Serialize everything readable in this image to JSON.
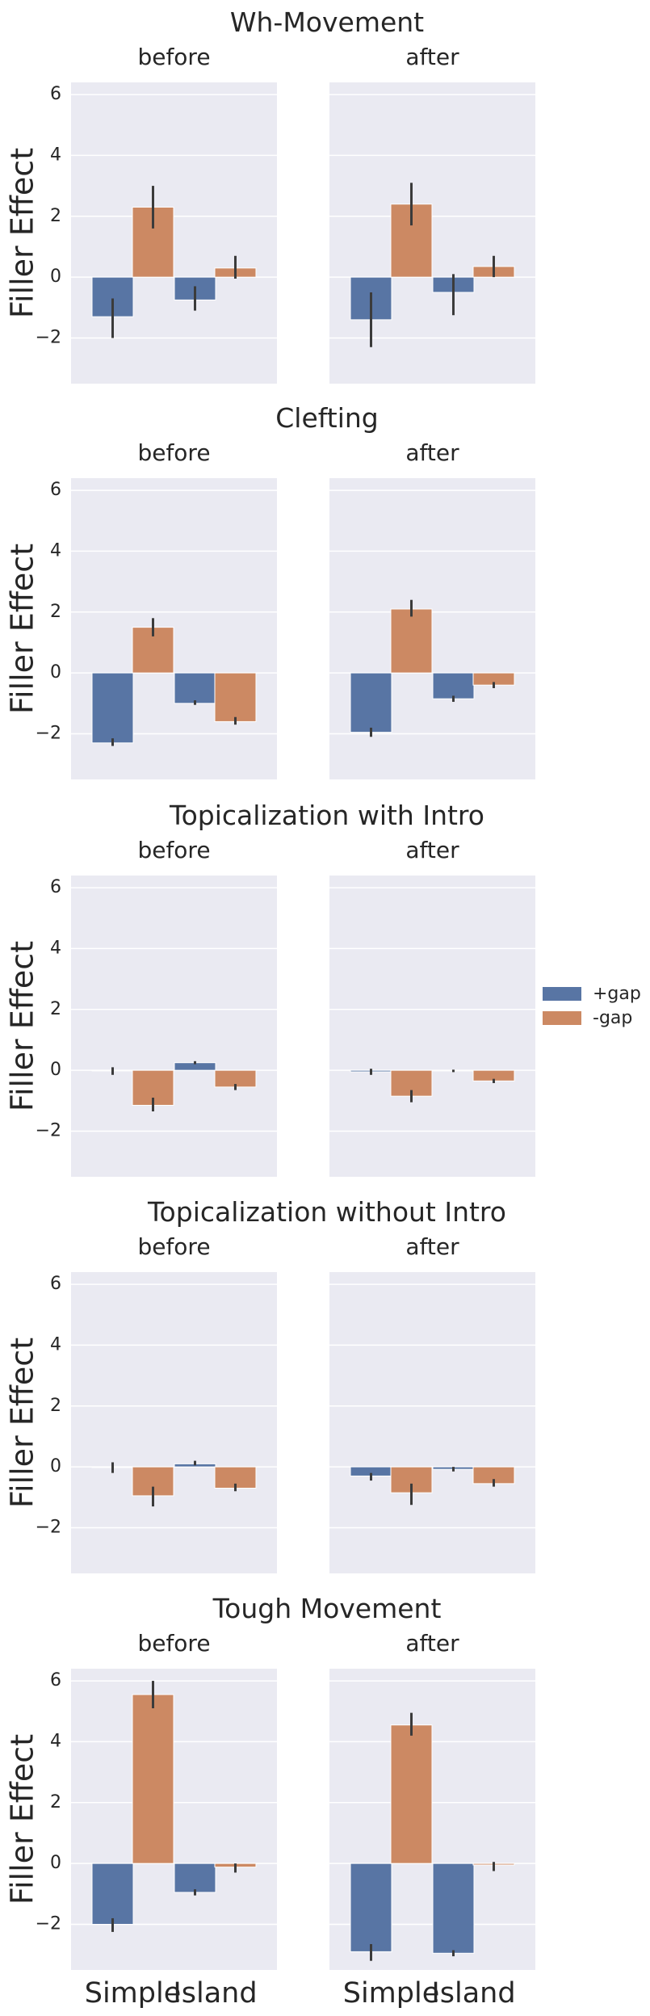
{
  "chart_data": {
    "type": "bar",
    "ylabel": "Filler Effect",
    "ylim": [
      -3.5,
      6.4
    ],
    "yticks": [
      -2,
      0,
      2,
      4,
      6
    ],
    "categories": [
      "Simple",
      "Island"
    ],
    "columns": [
      "before",
      "after"
    ],
    "grid": true,
    "legend_position": "right",
    "series_names": [
      "+gap",
      "-gap"
    ],
    "colors": {
      "+gap": "#5875a4",
      "-gap": "#cc8963",
      "background": "#eaeaf2",
      "grid": "#ffffff"
    },
    "rows": [
      {
        "title": "Wh-Movement",
        "panels": [
          {
            "column": "before",
            "bars": [
              {
                "category": "Simple",
                "series": "+gap",
                "value": -1.3,
                "ci": [
                  -2.0,
                  -0.7
                ]
              },
              {
                "category": "Simple",
                "series": "-gap",
                "value": 2.3,
                "ci": [
                  1.6,
                  3.0
                ]
              },
              {
                "category": "Island",
                "series": "+gap",
                "value": -0.75,
                "ci": [
                  -1.1,
                  -0.3
                ]
              },
              {
                "category": "Island",
                "series": "-gap",
                "value": 0.3,
                "ci": [
                  -0.05,
                  0.7
                ]
              }
            ]
          },
          {
            "column": "after",
            "bars": [
              {
                "category": "Simple",
                "series": "+gap",
                "value": -1.4,
                "ci": [
                  -2.3,
                  -0.5
                ]
              },
              {
                "category": "Simple",
                "series": "-gap",
                "value": 2.4,
                "ci": [
                  1.7,
                  3.1
                ]
              },
              {
                "category": "Island",
                "series": "+gap",
                "value": -0.5,
                "ci": [
                  -1.25,
                  0.1
                ]
              },
              {
                "category": "Island",
                "series": "-gap",
                "value": 0.35,
                "ci": [
                  0.0,
                  0.7
                ]
              }
            ]
          }
        ]
      },
      {
        "title": "Clefting",
        "panels": [
          {
            "column": "before",
            "bars": [
              {
                "category": "Simple",
                "series": "+gap",
                "value": -2.3,
                "ci": [
                  -2.4,
                  -2.15
                ]
              },
              {
                "category": "Simple",
                "series": "-gap",
                "value": 1.5,
                "ci": [
                  1.2,
                  1.8
                ]
              },
              {
                "category": "Island",
                "series": "+gap",
                "value": -1.0,
                "ci": [
                  -1.05,
                  -0.9
                ]
              },
              {
                "category": "Island",
                "series": "-gap",
                "value": -1.6,
                "ci": [
                  -1.7,
                  -1.45
                ]
              }
            ]
          },
          {
            "column": "after",
            "bars": [
              {
                "category": "Simple",
                "series": "+gap",
                "value": -1.95,
                "ci": [
                  -2.1,
                  -1.8
                ]
              },
              {
                "category": "Simple",
                "series": "-gap",
                "value": 2.1,
                "ci": [
                  1.85,
                  2.4
                ]
              },
              {
                "category": "Island",
                "series": "+gap",
                "value": -0.85,
                "ci": [
                  -0.95,
                  -0.75
                ]
              },
              {
                "category": "Island",
                "series": "-gap",
                "value": -0.4,
                "ci": [
                  -0.5,
                  -0.3
                ]
              }
            ]
          }
        ]
      },
      {
        "title": "Topicalization with Intro",
        "panels": [
          {
            "column": "before",
            "bars": [
              {
                "category": "Simple",
                "series": "+gap",
                "value": 0.0,
                "ci": [
                  -0.15,
                  0.1
                ]
              },
              {
                "category": "Simple",
                "series": "-gap",
                "value": -1.15,
                "ci": [
                  -1.35,
                  -0.9
                ]
              },
              {
                "category": "Island",
                "series": "+gap",
                "value": 0.25,
                "ci": [
                  0.2,
                  0.3
                ]
              },
              {
                "category": "Island",
                "series": "-gap",
                "value": -0.55,
                "ci": [
                  -0.65,
                  -0.45
                ]
              }
            ]
          },
          {
            "column": "after",
            "bars": [
              {
                "category": "Simple",
                "series": "+gap",
                "value": -0.05,
                "ci": [
                  -0.15,
                  0.05
                ]
              },
              {
                "category": "Simple",
                "series": "-gap",
                "value": -0.85,
                "ci": [
                  -1.05,
                  -0.65
                ]
              },
              {
                "category": "Island",
                "series": "+gap",
                "value": -0.02,
                "ci": [
                  -0.06,
                  0.02
                ]
              },
              {
                "category": "Island",
                "series": "-gap",
                "value": -0.35,
                "ci": [
                  -0.42,
                  -0.28
                ]
              }
            ]
          }
        ]
      },
      {
        "title": "Topicalization without Intro",
        "panels": [
          {
            "column": "before",
            "bars": [
              {
                "category": "Simple",
                "series": "+gap",
                "value": 0.0,
                "ci": [
                  -0.2,
                  0.15
                ]
              },
              {
                "category": "Simple",
                "series": "-gap",
                "value": -0.95,
                "ci": [
                  -1.3,
                  -0.65
                ]
              },
              {
                "category": "Island",
                "series": "+gap",
                "value": 0.1,
                "ci": [
                  0.05,
                  0.2
                ]
              },
              {
                "category": "Island",
                "series": "-gap",
                "value": -0.7,
                "ci": [
                  -0.8,
                  -0.55
                ]
              }
            ]
          },
          {
            "column": "after",
            "bars": [
              {
                "category": "Simple",
                "series": "+gap",
                "value": -0.3,
                "ci": [
                  -0.45,
                  -0.2
                ]
              },
              {
                "category": "Simple",
                "series": "-gap",
                "value": -0.85,
                "ci": [
                  -1.25,
                  -0.55
                ]
              },
              {
                "category": "Island",
                "series": "+gap",
                "value": -0.08,
                "ci": [
                  -0.15,
                  0.0
                ]
              },
              {
                "category": "Island",
                "series": "-gap",
                "value": -0.55,
                "ci": [
                  -0.65,
                  -0.4
                ]
              }
            ]
          }
        ]
      },
      {
        "title": "Tough Movement",
        "panels": [
          {
            "column": "before",
            "bars": [
              {
                "category": "Simple",
                "series": "+gap",
                "value": -2.0,
                "ci": [
                  -2.25,
                  -1.8
                ]
              },
              {
                "category": "Simple",
                "series": "-gap",
                "value": 5.55,
                "ci": [
                  5.1,
                  6.0
                ]
              },
              {
                "category": "Island",
                "series": "+gap",
                "value": -0.95,
                "ci": [
                  -1.05,
                  -0.85
                ]
              },
              {
                "category": "Island",
                "series": "-gap",
                "value": -0.12,
                "ci": [
                  -0.3,
                  0.0
                ]
              }
            ]
          },
          {
            "column": "after",
            "bars": [
              {
                "category": "Simple",
                "series": "+gap",
                "value": -2.9,
                "ci": [
                  -3.2,
                  -2.65
                ]
              },
              {
                "category": "Simple",
                "series": "-gap",
                "value": 4.55,
                "ci": [
                  4.2,
                  4.95
                ]
              },
              {
                "category": "Island",
                "series": "+gap",
                "value": -2.95,
                "ci": [
                  -3.05,
                  -2.85
                ]
              },
              {
                "category": "Island",
                "series": "-gap",
                "value": -0.05,
                "ci": [
                  -0.25,
                  0.05
                ]
              }
            ]
          }
        ]
      }
    ]
  }
}
